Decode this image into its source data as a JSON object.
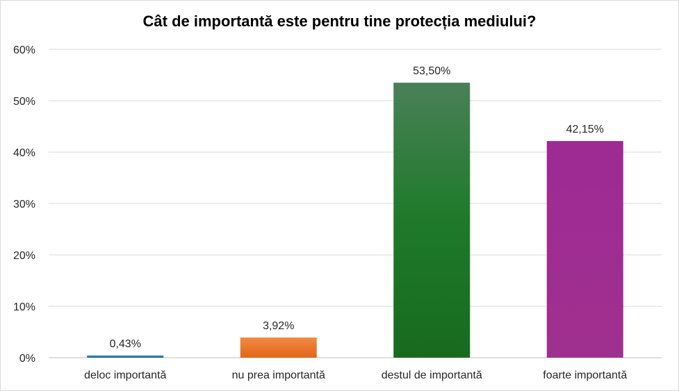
{
  "chart_data": {
    "type": "bar",
    "title": "Cât de importantă este pentru tine protecția mediului?",
    "categories": [
      "deloc importantă",
      "nu prea importantă",
      "destul de importantă",
      "foarte importantă"
    ],
    "values": [
      0.43,
      3.92,
      53.5,
      42.15
    ],
    "data_labels": [
      "0,43%",
      "3,92%",
      "53,50%",
      "42,15%"
    ],
    "colors": [
      "#2e75b6",
      "#ed7d31",
      "#2e7d32",
      "#a0298f"
    ],
    "ylim": [
      0,
      60
    ],
    "yticks": [
      0,
      10,
      20,
      30,
      40,
      50,
      60
    ],
    "ytick_labels": [
      "0%",
      "10%",
      "20%",
      "30%",
      "40%",
      "50%",
      "60%"
    ],
    "grid": true,
    "legend": "none"
  }
}
